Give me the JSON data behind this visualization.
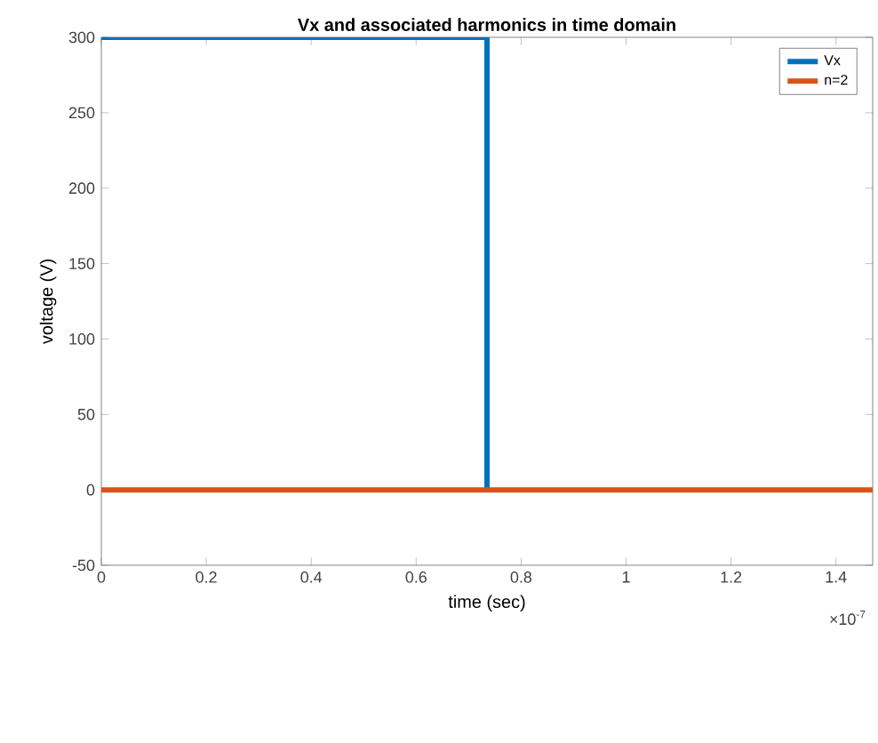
{
  "chart_data": {
    "type": "line",
    "title": "Vx and associated harmonics in time domain",
    "xlabel": "time (sec)",
    "ylabel": "voltage (V)",
    "annotations": [
      "×10$^{-7}$"
    ],
    "series": [
      {
        "name": "Vx",
        "color": "#0072bd",
        "x": [
          0,
          0.735,
          0.735
        ],
        "values": [
          300,
          300,
          0
        ]
      },
      {
        "name": "n=2",
        "color": "#d95319",
        "x": [
          0,
          1.47
        ],
        "values": [
          0,
          0
        ]
      }
    ],
    "xlim": [
      0,
      1.47
    ],
    "xticks": [
      0,
      0.2,
      0.4,
      0.6,
      0.8,
      1,
      1.2,
      1.4
    ],
    "ylim": [
      -50,
      300
    ],
    "yticks": [
      -50,
      0,
      50,
      100,
      150,
      200,
      250,
      300
    ],
    "grid": false,
    "legend": "top right",
    "marker": "none",
    "line_style": "solid"
  }
}
